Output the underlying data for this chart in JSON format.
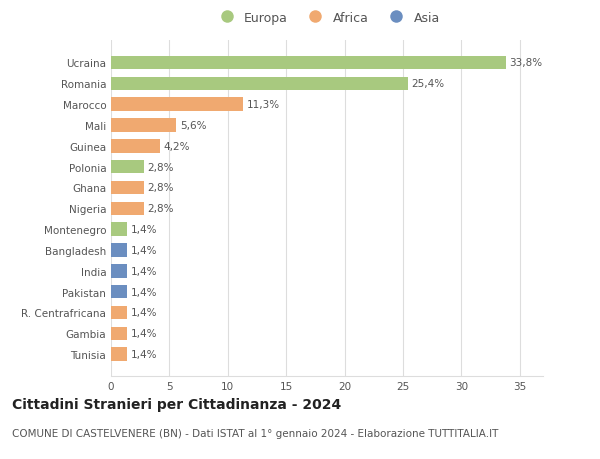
{
  "categories": [
    "Ucraina",
    "Romania",
    "Marocco",
    "Mali",
    "Guinea",
    "Polonia",
    "Ghana",
    "Nigeria",
    "Montenegro",
    "Bangladesh",
    "India",
    "Pakistan",
    "R. Centrafricana",
    "Gambia",
    "Tunisia"
  ],
  "values": [
    33.8,
    25.4,
    11.3,
    5.6,
    4.2,
    2.8,
    2.8,
    2.8,
    1.4,
    1.4,
    1.4,
    1.4,
    1.4,
    1.4,
    1.4
  ],
  "labels": [
    "33,8%",
    "25,4%",
    "11,3%",
    "5,6%",
    "4,2%",
    "2,8%",
    "2,8%",
    "2,8%",
    "1,4%",
    "1,4%",
    "1,4%",
    "1,4%",
    "1,4%",
    "1,4%",
    "1,4%"
  ],
  "continents": [
    "Europa",
    "Europa",
    "Africa",
    "Africa",
    "Africa",
    "Europa",
    "Africa",
    "Africa",
    "Europa",
    "Asia",
    "Asia",
    "Asia",
    "Africa",
    "Africa",
    "Africa"
  ],
  "continent_colors": {
    "Europa": "#a8c97f",
    "Africa": "#f0a970",
    "Asia": "#6b8ec0"
  },
  "legend_order": [
    "Europa",
    "Africa",
    "Asia"
  ],
  "title": "Cittadini Stranieri per Cittadinanza - 2024",
  "subtitle": "COMUNE DI CASTELVENERE (BN) - Dati ISTAT al 1° gennaio 2024 - Elaborazione TUTTITALIA.IT",
  "xlim": [
    0,
    37
  ],
  "xticks": [
    0,
    5,
    10,
    15,
    20,
    25,
    30,
    35
  ],
  "background_color": "#ffffff",
  "grid_color": "#dddddd",
  "title_fontsize": 10,
  "subtitle_fontsize": 7.5,
  "label_fontsize": 7.5,
  "tick_fontsize": 7.5,
  "bar_height": 0.65
}
